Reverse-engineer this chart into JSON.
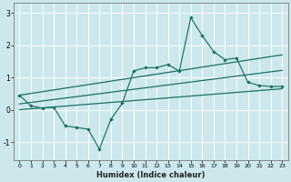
{
  "xlabel": "Humidex (Indice chaleur)",
  "bg_color": "#cce8ec",
  "grid_color": "#ffffff",
  "line_color": "#1a7060",
  "xlim": [
    -0.5,
    23.5
  ],
  "ylim": [
    -1.55,
    3.3
  ],
  "xticks": [
    0,
    1,
    2,
    3,
    4,
    5,
    6,
    7,
    8,
    9,
    10,
    11,
    12,
    13,
    14,
    15,
    16,
    17,
    18,
    19,
    20,
    21,
    22,
    23
  ],
  "yticks": [
    -1,
    0,
    1,
    2,
    3
  ],
  "series1_x": [
    0,
    1,
    2,
    3,
    4,
    5,
    6,
    7,
    8,
    9,
    10,
    11,
    12,
    13,
    14,
    15,
    16,
    17,
    18,
    19,
    20,
    21,
    22,
    23
  ],
  "series1_y": [
    0.45,
    0.12,
    0.05,
    0.08,
    -0.5,
    -0.55,
    -0.6,
    -1.22,
    -0.3,
    0.2,
    1.2,
    1.3,
    1.3,
    1.4,
    1.2,
    2.85,
    2.3,
    1.8,
    1.55,
    1.6,
    0.85,
    0.75,
    0.72,
    0.72
  ],
  "line1_x": [
    0,
    23
  ],
  "line1_y": [
    0.45,
    1.7
  ],
  "line2_x": [
    0,
    23
  ],
  "line2_y": [
    0.18,
    1.22
  ],
  "line3_x": [
    0,
    23
  ],
  "line3_y": [
    0.0,
    0.65
  ]
}
